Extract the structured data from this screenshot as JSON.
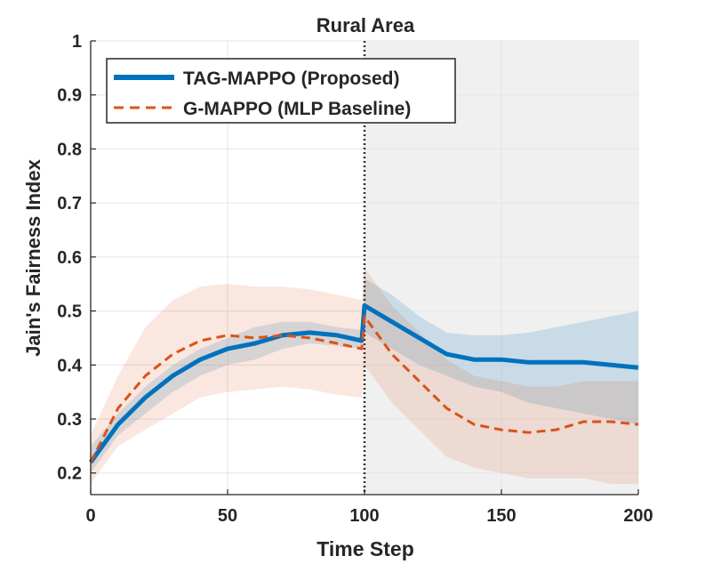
{
  "chart_data": {
    "type": "line",
    "title": "Rural Area",
    "xlabel": "Time Step",
    "ylabel": "Jain's Fairness Index",
    "xlim": [
      0,
      200
    ],
    "ylim": [
      0.16,
      1.0
    ],
    "xticks": [
      0,
      50,
      100,
      150,
      200
    ],
    "yticks": [
      0.2,
      0.3,
      0.4,
      0.5,
      0.6,
      0.7,
      0.8,
      0.9,
      1.0
    ],
    "xtick_labels": [
      "0",
      "50",
      "100",
      "150",
      "200"
    ],
    "ytick_labels": [
      "0.2",
      "0.3",
      "0.4",
      "0.5",
      "0.6",
      "0.7",
      "0.8",
      "0.9",
      "1"
    ],
    "grid": true,
    "legend_position": "top-left",
    "event_marker_x": 100,
    "shaded_region_x": [
      100,
      200
    ],
    "series": [
      {
        "name": "TAG-MAPPO (Proposed)",
        "color": "#0072BD",
        "style": "solid",
        "x": [
          0,
          10,
          20,
          30,
          40,
          50,
          60,
          70,
          80,
          90,
          99,
          100,
          110,
          120,
          130,
          140,
          150,
          160,
          170,
          180,
          190,
          200
        ],
        "y": [
          0.22,
          0.29,
          0.34,
          0.38,
          0.41,
          0.43,
          0.44,
          0.455,
          0.46,
          0.455,
          0.445,
          0.51,
          0.48,
          0.45,
          0.42,
          0.41,
          0.41,
          0.405,
          0.405,
          0.405,
          0.4,
          0.395
        ],
        "upper": [
          0.25,
          0.31,
          0.36,
          0.4,
          0.43,
          0.45,
          0.47,
          0.48,
          0.48,
          0.47,
          0.465,
          0.56,
          0.53,
          0.49,
          0.46,
          0.455,
          0.455,
          0.46,
          0.47,
          0.48,
          0.49,
          0.5
        ],
        "lower": [
          0.2,
          0.27,
          0.31,
          0.35,
          0.38,
          0.4,
          0.41,
          0.43,
          0.44,
          0.435,
          0.43,
          0.46,
          0.43,
          0.4,
          0.38,
          0.36,
          0.35,
          0.33,
          0.32,
          0.31,
          0.3,
          0.29
        ]
      },
      {
        "name": "G-MAPPO (MLP Baseline)",
        "color": "#D95319",
        "style": "dashed",
        "x": [
          0,
          10,
          20,
          30,
          40,
          50,
          60,
          70,
          80,
          90,
          99,
          100,
          110,
          120,
          130,
          140,
          150,
          160,
          170,
          180,
          190,
          200
        ],
        "y": [
          0.22,
          0.32,
          0.38,
          0.42,
          0.445,
          0.455,
          0.45,
          0.455,
          0.45,
          0.44,
          0.43,
          0.49,
          0.42,
          0.37,
          0.32,
          0.29,
          0.28,
          0.275,
          0.28,
          0.295,
          0.295,
          0.29
        ],
        "upper": [
          0.27,
          0.38,
          0.47,
          0.52,
          0.545,
          0.55,
          0.545,
          0.545,
          0.54,
          0.53,
          0.52,
          0.58,
          0.51,
          0.46,
          0.41,
          0.38,
          0.37,
          0.36,
          0.36,
          0.37,
          0.37,
          0.37
        ],
        "lower": [
          0.18,
          0.25,
          0.28,
          0.31,
          0.34,
          0.35,
          0.355,
          0.36,
          0.355,
          0.345,
          0.34,
          0.4,
          0.33,
          0.28,
          0.23,
          0.21,
          0.2,
          0.19,
          0.19,
          0.19,
          0.18,
          0.18
        ]
      }
    ]
  },
  "colors": {
    "shaded_region": "#F0F0F0",
    "grid": "#E6E6E6",
    "axis": "#262626",
    "event_line": "#333333"
  }
}
